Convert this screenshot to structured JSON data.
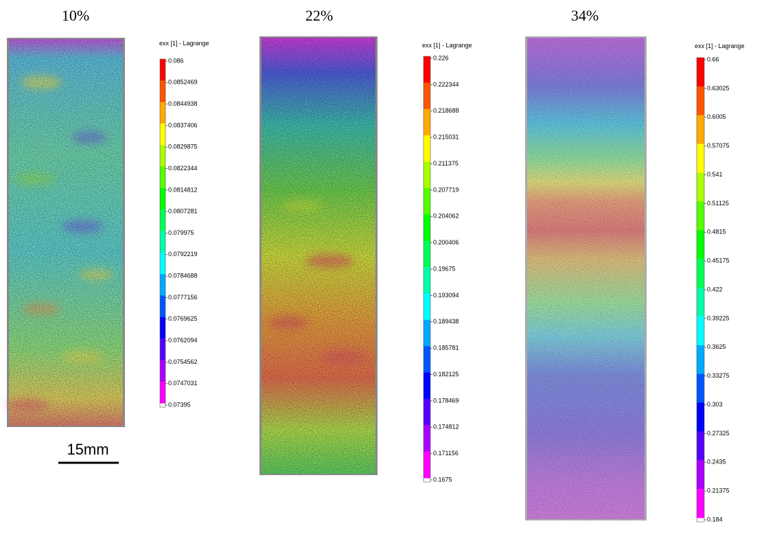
{
  "panels": [
    {
      "label": "10%",
      "colorbar": {
        "title": "exx [1] - Lagrange",
        "ticks": [
          "0.086",
          "0.0852469",
          "0.0844938",
          "0.0837406",
          "0.0829875",
          "0.0822344",
          "0.0814812",
          "0.0807281",
          "0.079975",
          "0.0792219",
          "0.0784688",
          "0.0777156",
          "0.0769625",
          "0.0762094",
          "0.0754562",
          "0.0747031",
          "0.07395"
        ]
      }
    },
    {
      "label": "22%",
      "colorbar": {
        "title": "exx [1] - Lagrange",
        "ticks": [
          "0.226",
          "0.222344",
          "0.218688",
          "0.215031",
          "0.211375",
          "0.207719",
          "0.204062",
          "0.200406",
          "0.19675",
          "0.193094",
          "0.189438",
          "0.185781",
          "0.182125",
          "0.178469",
          "0.174812",
          "0.171156",
          "0.1675"
        ]
      }
    },
    {
      "label": "34%",
      "colorbar": {
        "title": "exx [1] - Lagrange",
        "ticks": [
          "0.66",
          "0.63025",
          "0.6005",
          "0.57075",
          "0.541",
          "0.51125",
          "0.4815",
          "0.45175",
          "0.422",
          "0.39225",
          "0.3625",
          "0.33275",
          "0.303",
          "0.27325",
          "0.2435",
          "0.21375",
          "0.184"
        ]
      }
    }
  ],
  "scale_bar": {
    "label": "15mm"
  }
}
